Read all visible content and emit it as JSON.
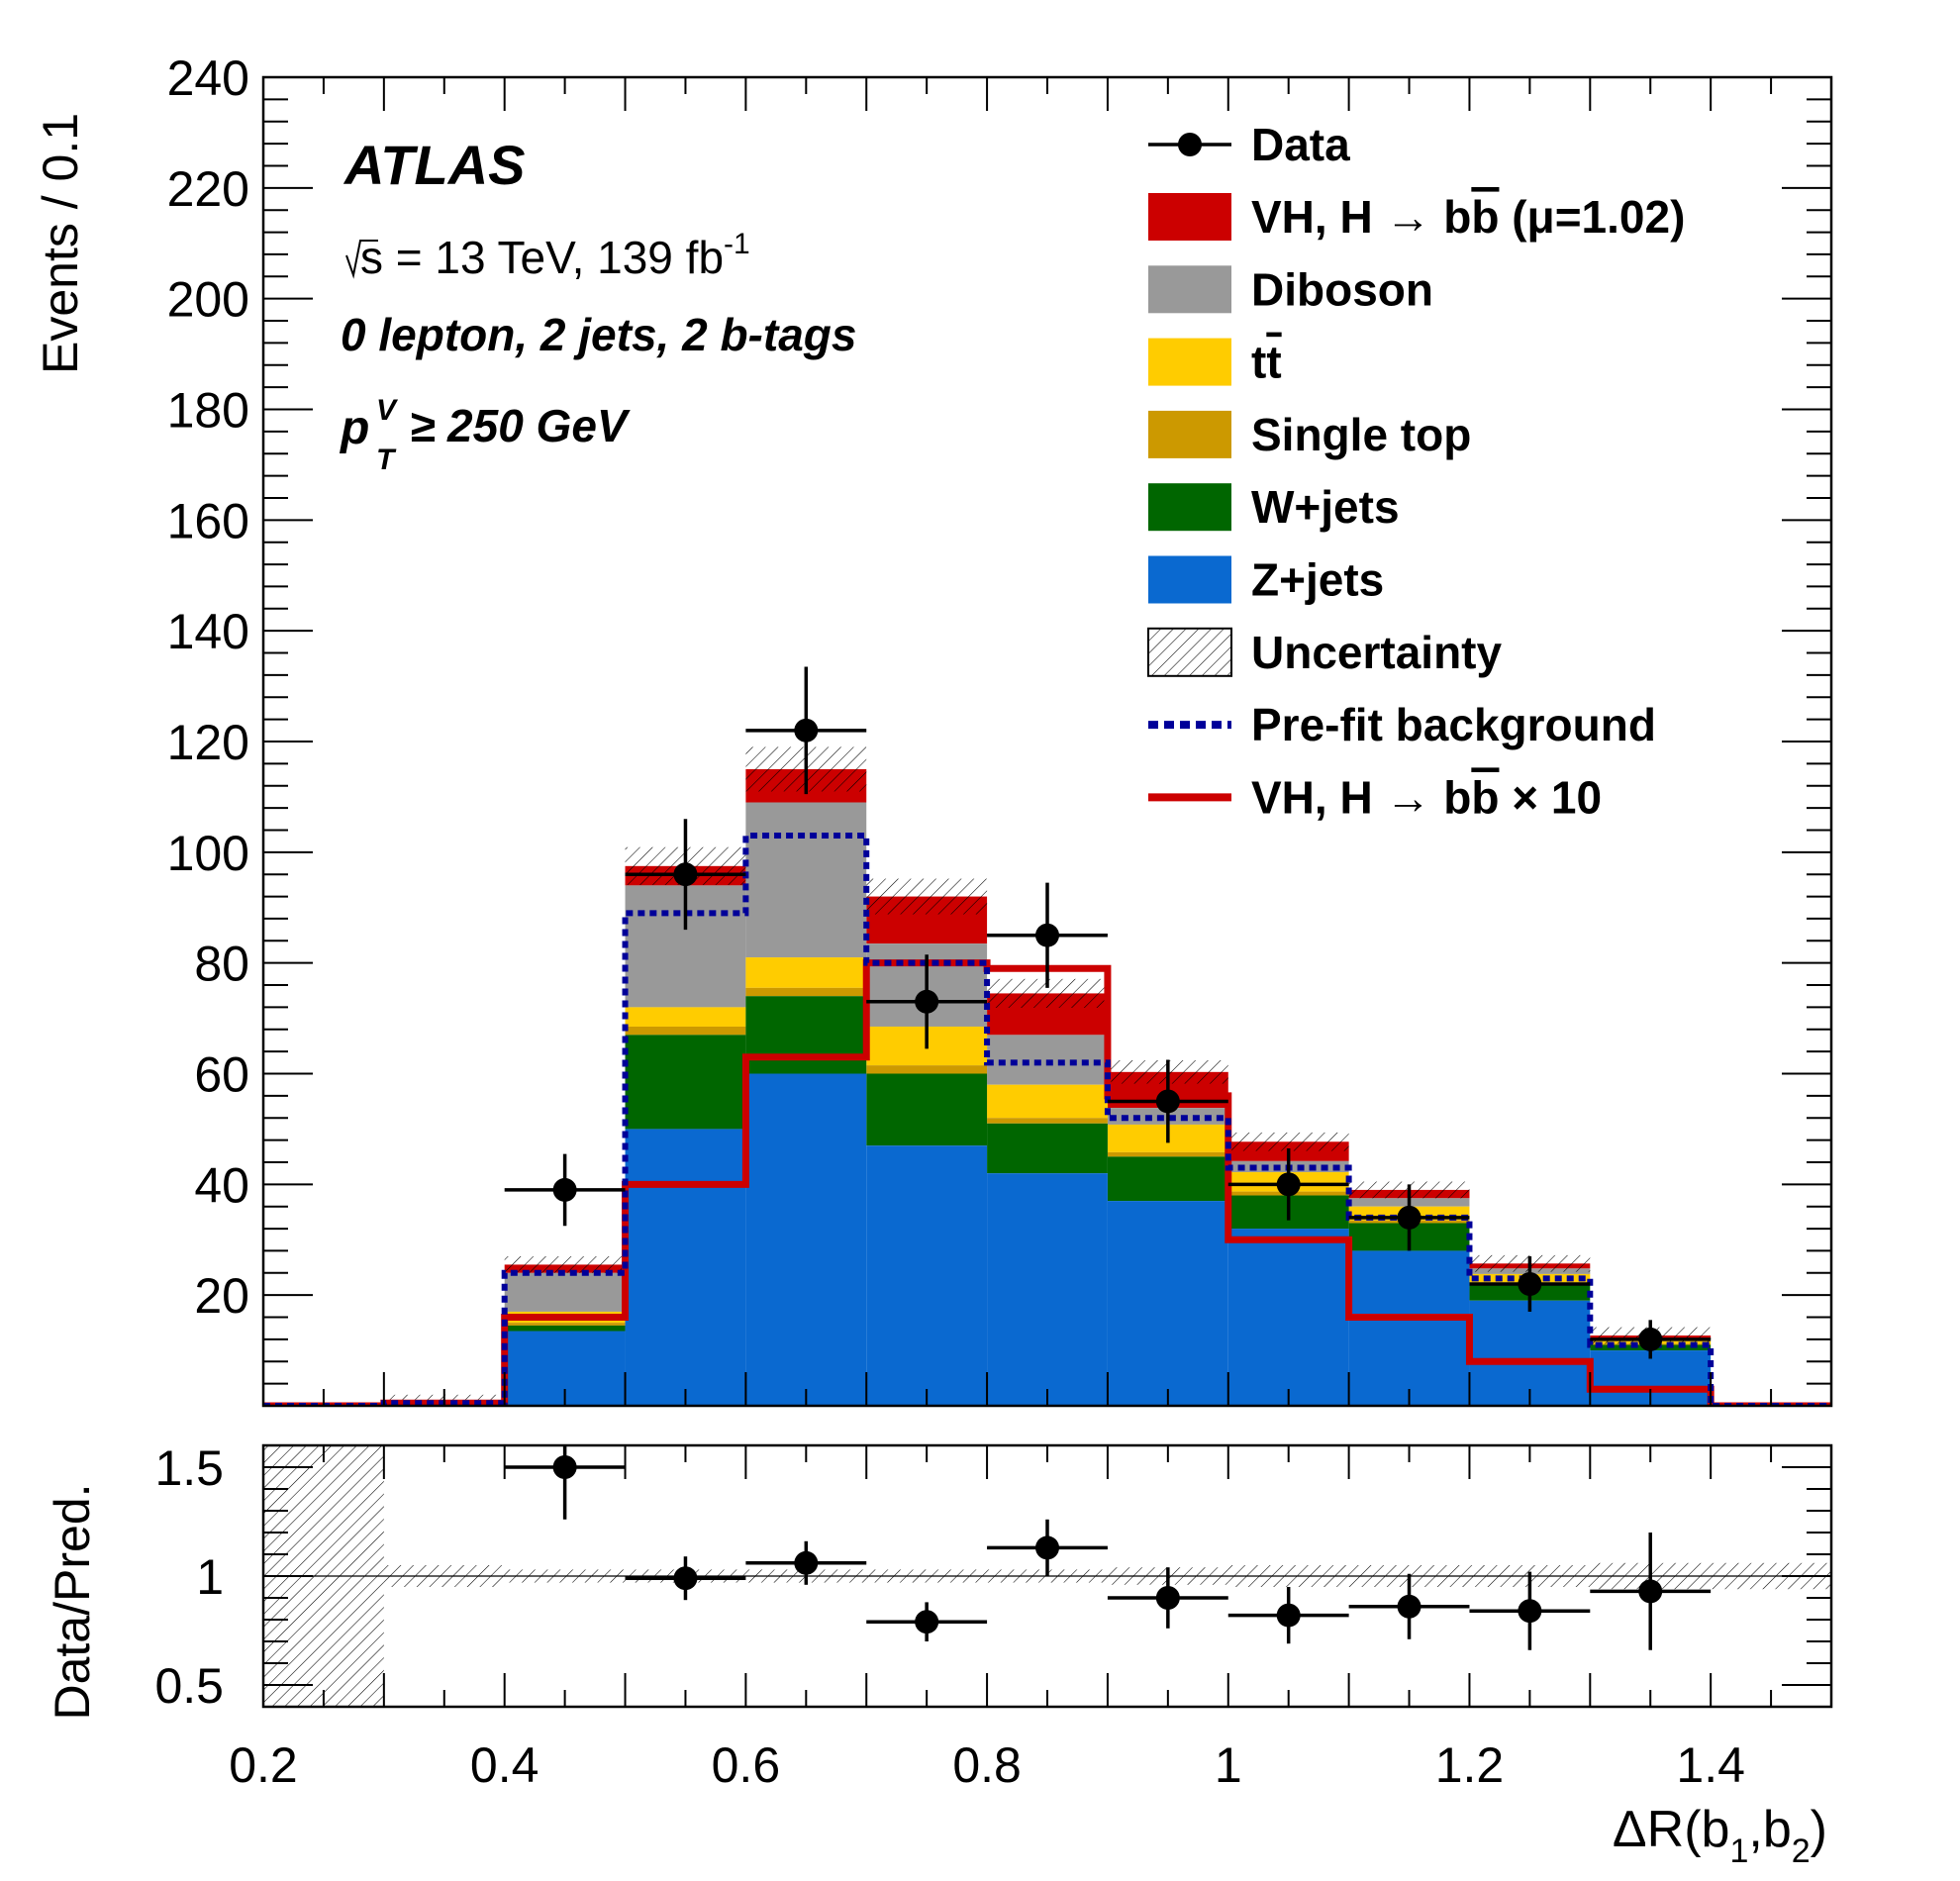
{
  "chart_data": {
    "type": "histogram-stack",
    "experiment": "ATLAS",
    "energy_lumi": {
      "sqrt": "s",
      "text": " = 13 TeV, 139 fb",
      "sup": "-1"
    },
    "selection": "0 lepton, 2 jets, 2 b-tags",
    "ptcut": {
      "p": "p",
      "sup": "V",
      "sub": "T",
      "rest": " ≥ 250 GeV"
    },
    "xlabel": {
      "main": "ΔR(b",
      "s1": "1",
      "mid": ",b",
      "s2": "2",
      "end": ")"
    },
    "ylabel": "Events / 0.1",
    "ratio_ylabel": "Data/Pred.",
    "xlim": [
      0.2,
      1.5
    ],
    "ylim": [
      0,
      240
    ],
    "ratio_ylim": [
      0.4,
      1.6
    ],
    "bin_edges": [
      0.2,
      0.3,
      0.4,
      0.5,
      0.6,
      0.7,
      0.8,
      0.9,
      1.0,
      1.1,
      1.2,
      1.3,
      1.4,
      1.5
    ],
    "x_ticks": [
      {
        "v": 0.2,
        "label": "0.2"
      },
      {
        "v": 0.4,
        "label": "0.4"
      },
      {
        "v": 0.6,
        "label": "0.6"
      },
      {
        "v": 0.8,
        "label": "0.8"
      },
      {
        "v": 1.0,
        "label": "1"
      },
      {
        "v": 1.2,
        "label": "1.2"
      },
      {
        "v": 1.4,
        "label": "1.4"
      }
    ],
    "y_ticks": [
      20,
      40,
      60,
      80,
      100,
      120,
      140,
      160,
      180,
      200,
      220,
      240
    ],
    "ratio_ticks": [
      {
        "v": 0.5,
        "label": "0.5"
      },
      {
        "v": 1.0,
        "label": "1"
      },
      {
        "v": 1.5,
        "label": "1.5"
      }
    ],
    "stack": [
      {
        "name": "Z+jets",
        "color": "#0a69d0",
        "values": [
          0,
          0,
          13.5,
          50,
          60,
          47,
          42,
          37,
          32,
          28,
          19,
          10,
          0
        ]
      },
      {
        "name": "W+jets",
        "color": "#006600",
        "values": [
          0,
          0,
          1,
          17,
          14,
          13,
          9,
          8,
          6,
          5,
          3,
          1,
          0
        ]
      },
      {
        "name": "Single top",
        "color": "#cc9900",
        "values": [
          0,
          0,
          0.5,
          1.5,
          1.5,
          1.5,
          1.0,
          0.8,
          0.7,
          0.5,
          0.3,
          0.2,
          0
        ]
      },
      {
        "name": "tt̄",
        "color": "#ffcc00",
        "values": [
          0,
          0,
          2,
          3.5,
          5.5,
          7,
          6,
          5,
          3.5,
          2.5,
          1.5,
          0.5,
          0
        ]
      },
      {
        "name": "Diboson",
        "color": "#999999",
        "values": [
          0,
          0.5,
          7,
          22,
          28,
          15,
          9,
          3,
          2,
          1.5,
          1,
          0.5,
          0
        ]
      },
      {
        "name": "VH, H → bb̄ (μ=1.02)",
        "color": "#cc0000",
        "values": [
          0,
          0,
          1.5,
          3.5,
          6,
          8.5,
          7.5,
          6.5,
          3.5,
          1.5,
          0.9,
          0.5,
          0
        ]
      }
    ],
    "prefit_background": [
      0,
      0.5,
      24,
      89,
      103,
      80,
      62,
      52,
      43,
      34,
      23,
      11,
      0
    ],
    "signal_x10": [
      0,
      0.5,
      16,
      40,
      63,
      80,
      79,
      56,
      30,
      16,
      8,
      3,
      0
    ],
    "data": {
      "x": [
        0.45,
        0.55,
        0.65,
        0.75,
        0.85,
        0.95,
        1.05,
        1.15,
        1.25,
        1.35
      ],
      "y": [
        39,
        96,
        122,
        73,
        85,
        55,
        40,
        34,
        22,
        12
      ],
      "err": [
        6.5,
        10,
        11.5,
        8.5,
        9.5,
        7.5,
        6.5,
        6,
        5,
        3.5
      ]
    },
    "ratio": {
      "x": [
        0.45,
        0.55,
        0.65,
        0.75,
        0.85,
        0.95,
        1.05,
        1.15,
        1.25,
        1.35
      ],
      "y": [
        1.5,
        0.99,
        1.06,
        0.79,
        1.13,
        0.9,
        0.82,
        0.86,
        0.84,
        0.93
      ],
      "err": [
        0.24,
        0.1,
        0.1,
        0.09,
        0.13,
        0.14,
        0.13,
        0.15,
        0.18,
        0.27
      ],
      "band": [
        0.6,
        0.05,
        0.03,
        0.03,
        0.03,
        0.03,
        0.03,
        0.04,
        0.05,
        0.05,
        0.05,
        0.06,
        0.06
      ]
    },
    "legend": [
      {
        "label_pre": "VH, H → b",
        "bar": "b",
        "label_post": " (μ=1.02)",
        "kind": "fill",
        "color": "#cc0000"
      },
      {
        "label": "Diboson",
        "kind": "fill",
        "color": "#999999"
      },
      {
        "label_pre": "t",
        "bar": "t",
        "label_post": "",
        "kind": "fill",
        "color": "#ffcc00"
      },
      {
        "label": "Single top",
        "kind": "fill",
        "color": "#cc9900"
      },
      {
        "label": "W+jets",
        "kind": "fill",
        "color": "#006600"
      },
      {
        "label": "Z+jets",
        "kind": "fill",
        "color": "#0a69d0"
      },
      {
        "label": "Uncertainty",
        "kind": "hatch",
        "color": "#000000"
      },
      {
        "label": "Pre-fit background",
        "kind": "dash",
        "color": "#000099"
      },
      {
        "label_pre": "VH, H → b",
        "bar": "b",
        "label_post": " × 10",
        "kind": "line",
        "color": "#cc0000"
      }
    ],
    "legend_data_label": "Data",
    "legend_placement": "top-right"
  }
}
